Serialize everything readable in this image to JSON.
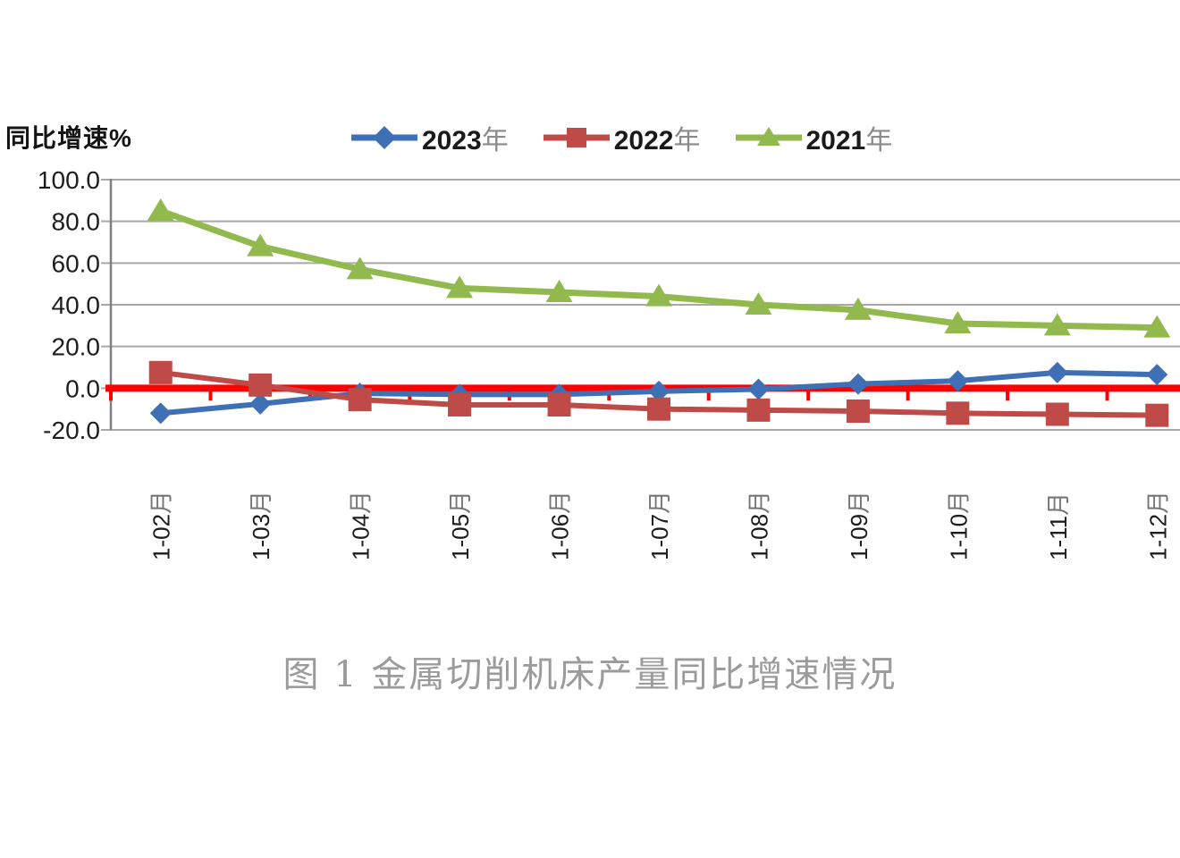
{
  "chart": {
    "axis_title": "同比增速%",
    "legend": [
      {
        "label": "2023年",
        "color": "#3F6FB5",
        "marker": "diamond"
      },
      {
        "label": "2022年",
        "color": "#BE4B48",
        "marker": "square"
      },
      {
        "label": "2021年",
        "color": "#92B94E",
        "marker": "triangle"
      }
    ]
  },
  "chart_data": {
    "type": "line",
    "title": "图 1 金属切削机床产量同比增速情况",
    "ylabel": "同比增速%",
    "xlabel": "",
    "categories": [
      "1-02月",
      "1-03月",
      "1-04月",
      "1-05月",
      "1-06月",
      "1-07月",
      "1-08月",
      "1-09月",
      "1-10月",
      "1-11月",
      "1-12月"
    ],
    "series": [
      {
        "name": "2023年",
        "marker": "diamond",
        "color": "#3F6FB5",
        "values": [
          -12,
          -7.5,
          -2.5,
          -3,
          -3,
          -1.5,
          -0.5,
          2,
          3.5,
          7.5,
          6.5
        ]
      },
      {
        "name": "2022年",
        "marker": "square",
        "color": "#BE4B48",
        "values": [
          7.5,
          1.5,
          -5.5,
          -8,
          -8,
          -10,
          -10.5,
          -11,
          -12,
          -12.5,
          -13
        ]
      },
      {
        "name": "2021年",
        "marker": "triangle",
        "color": "#92B94E",
        "values": [
          85,
          68,
          57,
          48,
          46,
          44,
          40,
          37.5,
          31,
          30,
          29
        ]
      }
    ],
    "ylim": [
      -20,
      100
    ],
    "yticks": [
      100,
      80,
      60,
      40,
      20,
      0,
      -20
    ],
    "ytick_labels": [
      "100.0",
      "80.0",
      "60.0",
      "40.0",
      "20.0",
      "0.0",
      "-20.0"
    ],
    "grid": true,
    "zero_line_color": "#FF0000",
    "legend_position": "top"
  },
  "theme": {
    "grid_color": "#A8A8A8",
    "axis_color": "#7F7F7F",
    "tick_text_color": "#1d1d1d",
    "caption_color": "#9b9b9b"
  },
  "caption": "图 1  金属切削机床产量同比增速情况"
}
